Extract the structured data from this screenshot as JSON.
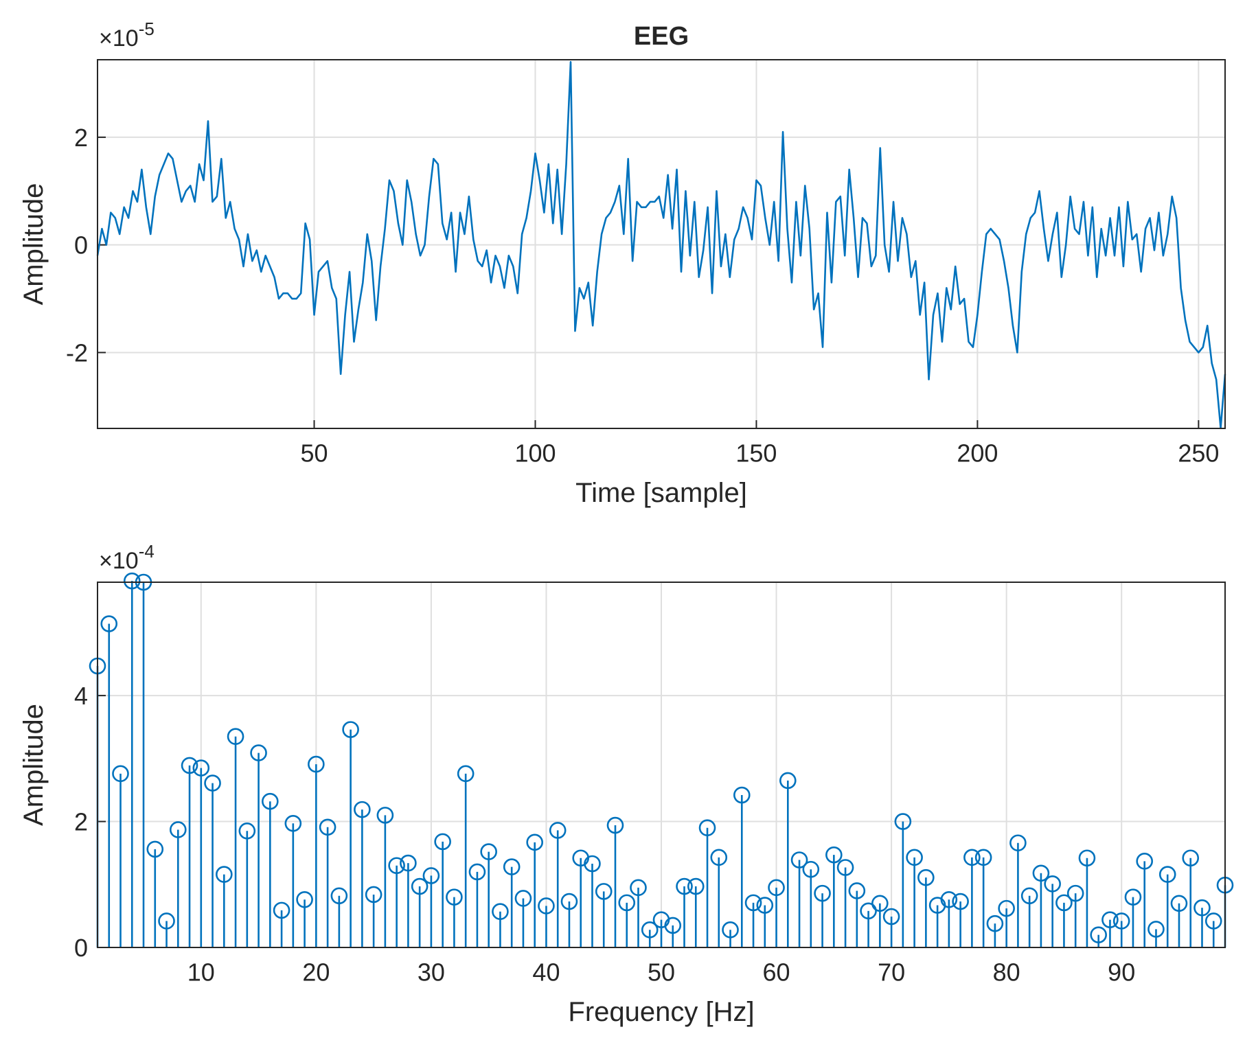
{
  "chart_data": [
    {
      "type": "line",
      "title": "EEG",
      "xlabel": "Time [sample]",
      "ylabel": "Amplitude",
      "y_multiplier": {
        "base": "×10",
        "exponent": "-5"
      },
      "color": "#0072bd",
      "grid": true,
      "xlim": [
        1,
        256
      ],
      "xticks": [
        50,
        100,
        150,
        200,
        250
      ],
      "ylim": [
        -3.41,
        3.44
      ],
      "yticks": [
        -2,
        0,
        2
      ],
      "x": [
        1,
        2,
        3,
        4,
        5,
        6,
        7,
        8,
        9,
        10,
        11,
        12,
        13,
        14,
        15,
        16,
        17,
        18,
        19,
        20,
        21,
        22,
        23,
        24,
        25,
        26,
        27,
        28,
        29,
        30,
        31,
        32,
        33,
        34,
        35,
        36,
        37,
        38,
        39,
        40,
        41,
        42,
        43,
        44,
        45,
        46,
        47,
        48,
        49,
        50,
        51,
        52,
        53,
        54,
        55,
        56,
        57,
        58,
        59,
        60,
        61,
        62,
        63,
        64,
        65,
        66,
        67,
        68,
        69,
        70,
        71,
        72,
        73,
        74,
        75,
        76,
        77,
        78,
        79,
        80,
        81,
        82,
        83,
        84,
        85,
        86,
        87,
        88,
        89,
        90,
        91,
        92,
        93,
        94,
        95,
        96,
        97,
        98,
        99,
        100,
        101,
        102,
        103,
        104,
        105,
        106,
        107,
        108,
        109,
        110,
        111,
        112,
        113,
        114,
        115,
        116,
        117,
        118,
        119,
        120,
        121,
        122,
        123,
        124,
        125,
        126,
        127,
        128,
        129,
        130,
        131,
        132,
        133,
        134,
        135,
        136,
        137,
        138,
        139,
        140,
        141,
        142,
        143,
        144,
        145,
        146,
        147,
        148,
        149,
        150,
        151,
        152,
        153,
        154,
        155,
        156,
        157,
        158,
        159,
        160,
        161,
        162,
        163,
        164,
        165,
        166,
        167,
        168,
        169,
        170,
        171,
        172,
        173,
        174,
        175,
        176,
        177,
        178,
        179,
        180,
        181,
        182,
        183,
        184,
        185,
        186,
        187,
        188,
        189,
        190,
        191,
        192,
        193,
        194,
        195,
        196,
        197,
        198,
        199,
        200,
        201,
        202,
        203,
        204,
        205,
        206,
        207,
        208,
        209,
        210,
        211,
        212,
        213,
        214,
        215,
        216,
        217,
        218,
        219,
        220,
        221,
        222,
        223,
        224,
        225,
        226,
        227,
        228,
        229,
        230,
        231,
        232,
        233,
        234,
        235,
        236,
        237,
        238,
        239,
        240,
        241,
        242,
        243,
        244,
        245,
        246,
        247,
        248,
        249,
        250,
        251,
        252,
        253,
        254,
        255,
        256
      ],
      "values": [
        -0.2,
        0.3,
        0.0,
        0.6,
        0.5,
        0.2,
        0.7,
        0.5,
        1.0,
        0.8,
        1.4,
        0.7,
        0.2,
        0.9,
        1.3,
        1.5,
        1.7,
        1.6,
        1.2,
        0.8,
        1.0,
        1.1,
        0.8,
        1.5,
        1.2,
        2.3,
        0.8,
        0.9,
        1.6,
        0.5,
        0.8,
        0.3,
        0.1,
        -0.4,
        0.2,
        -0.3,
        -0.1,
        -0.5,
        -0.2,
        -0.4,
        -0.6,
        -1.0,
        -0.9,
        -0.9,
        -1.0,
        -1.0,
        -0.9,
        0.4,
        0.1,
        -1.3,
        -0.5,
        -0.4,
        -0.3,
        -0.8,
        -1.0,
        -2.4,
        -1.3,
        -0.5,
        -1.8,
        -1.2,
        -0.7,
        0.2,
        -0.3,
        -1.4,
        -0.4,
        0.3,
        1.2,
        1.0,
        0.4,
        0.0,
        1.2,
        0.8,
        0.2,
        -0.2,
        0.0,
        0.9,
        1.6,
        1.5,
        0.4,
        0.1,
        0.6,
        -0.5,
        0.6,
        0.2,
        0.9,
        0.1,
        -0.3,
        -0.4,
        -0.1,
        -0.7,
        -0.2,
        -0.4,
        -0.8,
        -0.2,
        -0.4,
        -0.9,
        0.2,
        0.5,
        1.0,
        1.7,
        1.2,
        0.6,
        1.5,
        0.4,
        1.4,
        0.2,
        1.5,
        3.4,
        -1.6,
        -0.8,
        -1.0,
        -0.7,
        -1.5,
        -0.5,
        0.2,
        0.5,
        0.6,
        0.8,
        1.1,
        0.2,
        1.6,
        -0.3,
        0.8,
        0.7,
        0.7,
        0.8,
        0.8,
        0.9,
        0.5,
        1.3,
        0.3,
        1.4,
        -0.5,
        1.0,
        -0.2,
        0.8,
        -0.6,
        -0.1,
        0.7,
        -0.9,
        1.0,
        -0.4,
        0.2,
        -0.6,
        0.1,
        0.3,
        0.7,
        0.5,
        0.1,
        1.2,
        1.1,
        0.5,
        0.0,
        0.8,
        -0.3,
        2.1,
        0.3,
        -0.7,
        0.8,
        -0.2,
        1.1,
        0.3,
        -1.2,
        -0.9,
        -1.9,
        0.6,
        -0.7,
        0.8,
        0.9,
        -0.2,
        1.4,
        0.5,
        -0.6,
        0.5,
        0.4,
        -0.4,
        -0.2,
        1.8,
        0.0,
        -0.5,
        0.8,
        -0.3,
        0.5,
        0.2,
        -0.6,
        -0.3,
        -1.3,
        -0.7,
        -2.5,
        -1.3,
        -0.9,
        -1.8,
        -0.8,
        -1.2,
        -0.4,
        -1.1,
        -1.0,
        -1.8,
        -1.9,
        -1.3,
        -0.5,
        0.2,
        0.3,
        0.2,
        0.1,
        -0.3,
        -0.8,
        -1.5,
        -2.0,
        -0.5,
        0.2,
        0.5,
        0.6,
        1.0,
        0.3,
        -0.3,
        0.2,
        0.6,
        -0.6,
        0.0,
        0.9,
        0.3,
        0.2,
        0.8,
        -0.2,
        0.7,
        -0.6,
        0.3,
        -0.2,
        0.5,
        -0.2,
        0.7,
        -0.4,
        0.8,
        0.1,
        0.2,
        -0.5,
        0.3,
        0.5,
        -0.1,
        0.6,
        -0.2,
        0.2,
        0.9,
        0.5,
        -0.8,
        -1.4,
        -1.8,
        -1.9,
        -2.0,
        -1.9,
        -1.5,
        -2.2,
        -2.5,
        -3.4,
        -2.4
      ]
    },
    {
      "type": "stem",
      "xlabel": "Frequency [Hz]",
      "ylabel": "Amplitude",
      "y_multiplier": {
        "base": "×10",
        "exponent": "-4"
      },
      "color": "#0072bd",
      "grid": true,
      "xlim": [
        1,
        99
      ],
      "xticks": [
        10,
        20,
        30,
        40,
        50,
        60,
        70,
        80,
        90
      ],
      "ylim": [
        0,
        5.8
      ],
      "yticks": [
        0,
        2,
        4
      ],
      "x": [
        1,
        2,
        3,
        4,
        5,
        6,
        7,
        8,
        9,
        10,
        11,
        12,
        13,
        14,
        15,
        16,
        17,
        18,
        19,
        20,
        21,
        22,
        23,
        24,
        25,
        26,
        27,
        28,
        29,
        30,
        31,
        32,
        33,
        34,
        35,
        36,
        37,
        38,
        39,
        40,
        41,
        42,
        43,
        44,
        45,
        46,
        47,
        48,
        49,
        50,
        51,
        52,
        53,
        54,
        55,
        56,
        57,
        58,
        59,
        60,
        61,
        62,
        63,
        64,
        65,
        66,
        67,
        68,
        69,
        70,
        71,
        72,
        73,
        74,
        75,
        76,
        77,
        78,
        79,
        80,
        81,
        82,
        83,
        84,
        85,
        86,
        87,
        88,
        89,
        90,
        91,
        92,
        93,
        94,
        95,
        96,
        97,
        98,
        99
      ],
      "values": [
        4.47,
        5.14,
        2.76,
        5.82,
        5.8,
        1.56,
        0.42,
        1.87,
        2.89,
        2.85,
        2.61,
        1.16,
        3.35,
        1.85,
        3.09,
        2.32,
        0.59,
        1.97,
        0.76,
        2.91,
        1.91,
        0.82,
        3.46,
        2.19,
        0.84,
        2.1,
        1.3,
        1.34,
        0.97,
        1.14,
        1.68,
        0.8,
        2.76,
        1.2,
        1.52,
        0.57,
        1.28,
        0.78,
        1.67,
        0.66,
        1.86,
        0.73,
        1.42,
        1.33,
        0.89,
        1.94,
        0.71,
        0.95,
        0.28,
        0.44,
        0.35,
        0.97,
        0.97,
        1.9,
        1.43,
        0.28,
        2.42,
        0.71,
        0.67,
        0.95,
        2.65,
        1.39,
        1.24,
        0.86,
        1.47,
        1.27,
        0.9,
        0.58,
        0.7,
        0.49,
        2.0,
        1.43,
        1.11,
        0.67,
        0.76,
        0.73,
        1.43,
        1.43,
        0.38,
        0.62,
        1.66,
        0.82,
        1.18,
        1.01,
        0.71,
        0.86,
        1.42,
        0.2,
        0.44,
        0.42,
        0.8,
        1.37,
        0.29,
        1.16,
        0.7,
        1.42,
        0.63,
        0.42,
        0.99
      ]
    }
  ]
}
